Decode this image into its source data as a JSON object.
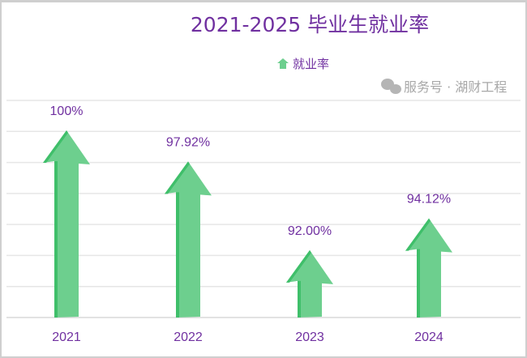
{
  "chart_data": {
    "type": "bar",
    "mark": "arrow",
    "title": "2021-2025  毕业生就业率",
    "categories": [
      "2021",
      "2022",
      "2023",
      "2024"
    ],
    "series": [
      {
        "name": "就业率",
        "values": [
          100,
          97.92,
          92.0,
          94.12
        ]
      }
    ],
    "data_labels": [
      "100%",
      "97.92%",
      "92.00%",
      "94.12%"
    ],
    "xlabel": "",
    "ylabel": "",
    "ylim": [
      87.5,
      102
    ],
    "grid": true,
    "legend": "top-center",
    "colors": {
      "bar": "#6dcf8e",
      "bar_edge": "#3fbf6a",
      "text": "#7030a0",
      "grid": "#e6e6e6"
    }
  },
  "watermark": "服务号 · 湖财工程"
}
